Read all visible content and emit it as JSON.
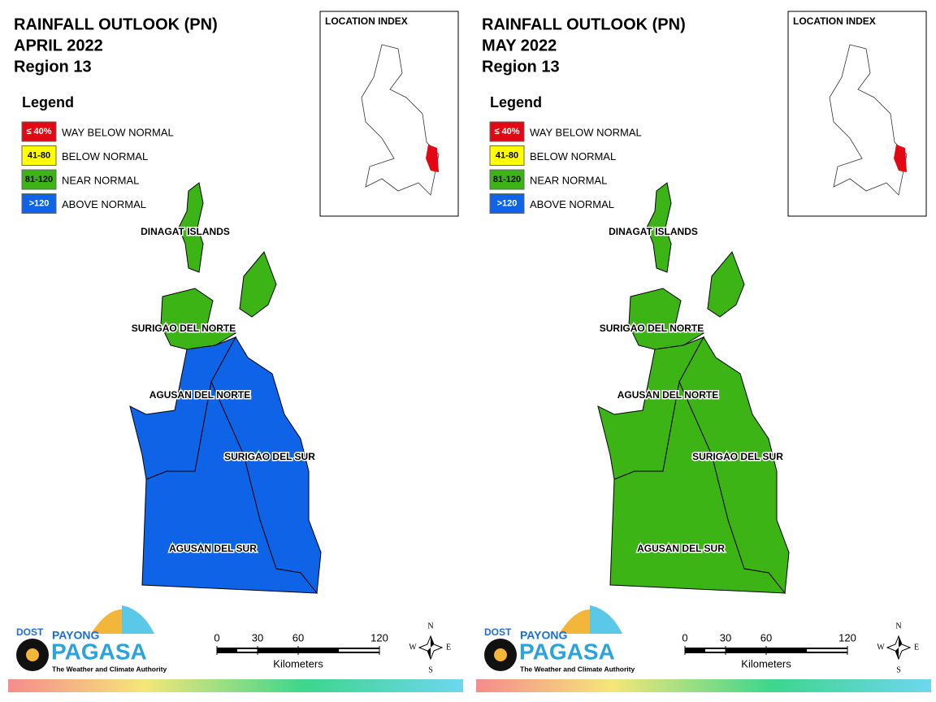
{
  "panels": [
    {
      "title_lines": [
        "RAINFALL OUTLOOK (PN)",
        "APRIL 2022",
        "Region 13"
      ],
      "legend": {
        "title": "Legend",
        "items": [
          {
            "swatch": "≤ 40%",
            "label": "WAY BELOW NORMAL",
            "color": "#e30613"
          },
          {
            "swatch": "41-80",
            "label": "BELOW NORMAL",
            "color": "#ffff00"
          },
          {
            "swatch": "81-120",
            "label": "NEAR NORMAL",
            "color": "#3cb416"
          },
          {
            "swatch": ">120",
            "label": "ABOVE NORMAL",
            "color": "#0f63e6"
          }
        ]
      },
      "location_index": "LOCATION INDEX",
      "provinces": [
        {
          "name": "DINAGAT ISLANDS",
          "color": "#3cb416"
        },
        {
          "name": "SURIGAO DEL NORTE",
          "color": "#3cb416"
        },
        {
          "name": "AGUSAN DEL NORTE",
          "color": "#0f63e6"
        },
        {
          "name": "SURIGAO DEL SUR",
          "color": "#0f63e6"
        },
        {
          "name": "AGUSAN DEL SUR",
          "color": "#0f63e6"
        }
      ],
      "scale": {
        "ticks": [
          0,
          30,
          60,
          120
        ],
        "unit": "Kilometers"
      },
      "compass": {
        "n": "N",
        "e": "E",
        "s": "S",
        "w": "W"
      },
      "logo": {
        "agency": "DOST",
        "brand_top": "PAYONG",
        "brand": "PAGASA",
        "tagline": "The Weather and Climate Authority"
      }
    },
    {
      "title_lines": [
        "RAINFALL OUTLOOK (PN)",
        "MAY 2022",
        "Region 13"
      ],
      "legend": {
        "title": "Legend",
        "items": [
          {
            "swatch": "≤ 40%",
            "label": "WAY BELOW NORMAL",
            "color": "#e30613"
          },
          {
            "swatch": "41-80",
            "label": "BELOW NORMAL",
            "color": "#ffff00"
          },
          {
            "swatch": "81-120",
            "label": "NEAR NORMAL",
            "color": "#3cb416"
          },
          {
            "swatch": ">120",
            "label": "ABOVE NORMAL",
            "color": "#0f63e6"
          }
        ]
      },
      "location_index": "LOCATION INDEX",
      "provinces": [
        {
          "name": "DINAGAT ISLANDS",
          "color": "#3cb416"
        },
        {
          "name": "SURIGAO DEL NORTE",
          "color": "#3cb416"
        },
        {
          "name": "AGUSAN DEL NORTE",
          "color": "#3cb416"
        },
        {
          "name": "SURIGAO DEL SUR",
          "color": "#3cb416"
        },
        {
          "name": "AGUSAN DEL SUR",
          "color": "#3cb416"
        }
      ],
      "scale": {
        "ticks": [
          0,
          30,
          60,
          120
        ],
        "unit": "Kilometers"
      },
      "compass": {
        "n": "N",
        "e": "E",
        "s": "S",
        "w": "W"
      },
      "logo": {
        "agency": "DOST",
        "brand_top": "PAYONG",
        "brand": "PAGASA",
        "tagline": "The Weather and Climate Authority"
      }
    }
  ]
}
